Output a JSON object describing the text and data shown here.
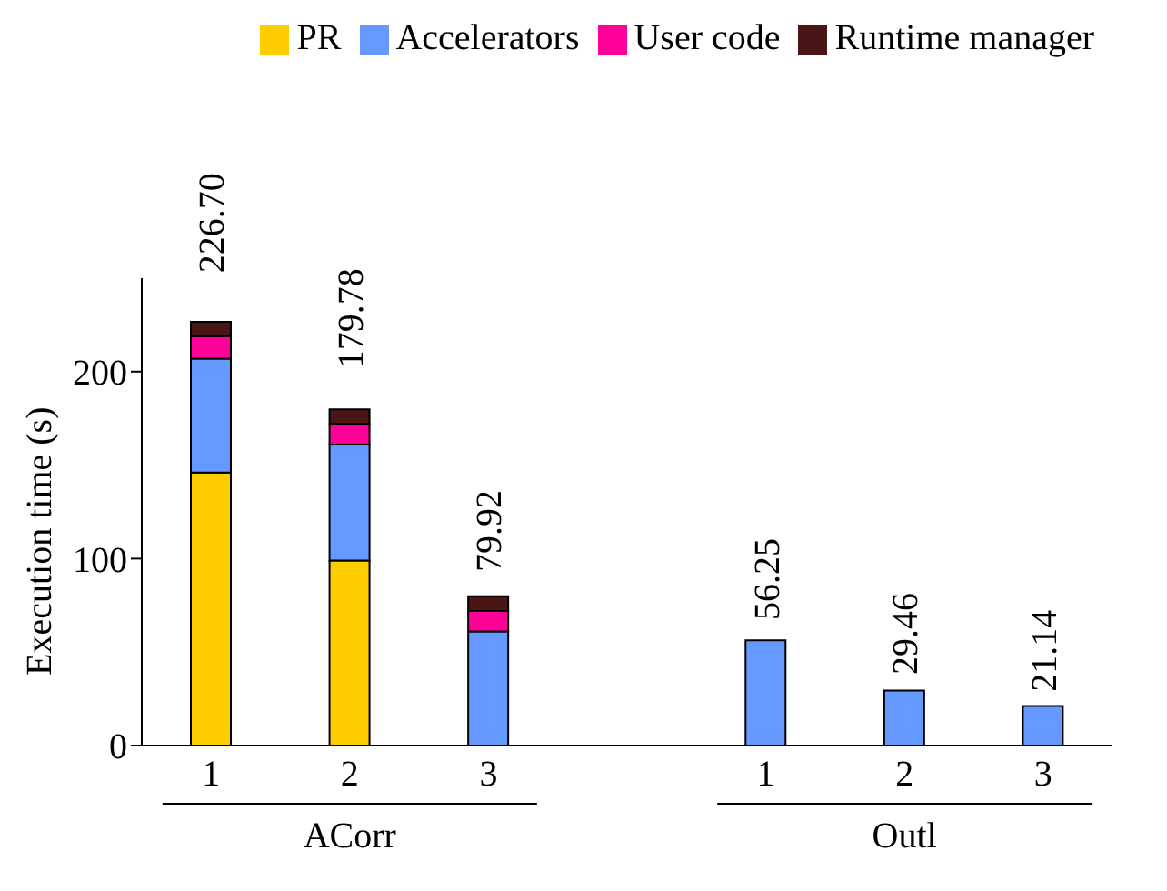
{
  "chart_data": {
    "type": "bar",
    "stacked": true,
    "ylabel": "Execution time (s)",
    "categories": [
      "1",
      "2",
      "3",
      null,
      "1",
      "2",
      "3"
    ],
    "series": [
      {
        "name": "PR",
        "color": "#ffcc00",
        "values": [
          146,
          99,
          null,
          null,
          null,
          null,
          null
        ]
      },
      {
        "name": "Accelerators",
        "color": "#6699ff",
        "values": [
          61,
          62,
          61,
          null,
          56.25,
          29.46,
          21.14
        ]
      },
      {
        "name": "User code",
        "color": "#ff0099",
        "values": [
          12,
          11,
          11,
          null,
          null,
          null,
          null
        ]
      },
      {
        "name": "Runtime manager",
        "color": "#4a1515",
        "values": [
          7.7,
          7.78,
          7.92,
          null,
          null,
          null,
          null
        ]
      }
    ],
    "totals": [
      "226.70",
      "179.78",
      "79.92",
      null,
      "56.25",
      "29.46",
      "21.14"
    ],
    "annotations": [
      "ACorr",
      "Outl"
    ],
    "ylim": [
      0,
      250
    ],
    "yticks": [
      0,
      100,
      200
    ],
    "legend": "top right"
  }
}
